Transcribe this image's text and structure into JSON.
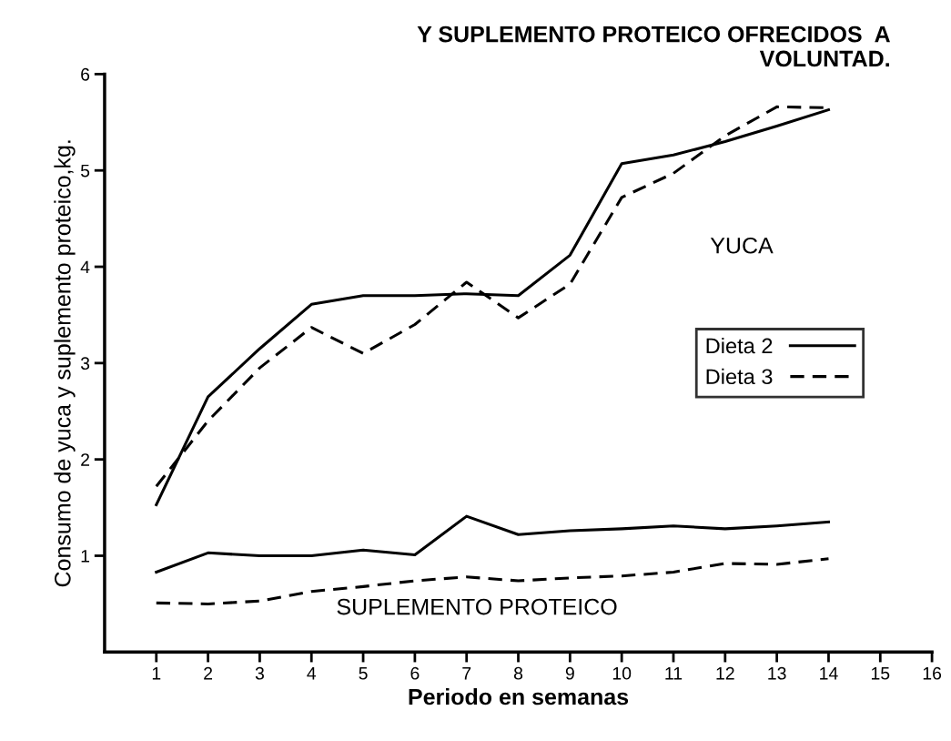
{
  "chart_data": {
    "type": "line",
    "title": "Y SUPLEMENTO PROTEICO OFRECIDOS  A\nVOLUNTAD.",
    "xlabel": "Periodo en semanas",
    "ylabel": "Consumo de yuca y suplemento proteico,kg.",
    "x": [
      1,
      2,
      3,
      4,
      5,
      6,
      7,
      8,
      9,
      10,
      11,
      12,
      13,
      14
    ],
    "series": [
      {
        "name": "Dieta 2",
        "color": "#000000",
        "line_style": "solid",
        "values": [
          1.53,
          2.65,
          3.15,
          3.61,
          3.7,
          3.7,
          3.72,
          3.7,
          4.12,
          5.07,
          5.16,
          5.3,
          5.46,
          5.63
        ]
      },
      {
        "name": "Dieta 3",
        "color": "#000000",
        "line_style": "dashed",
        "values": [
          1.72,
          2.4,
          2.95,
          3.37,
          3.1,
          3.4,
          3.84,
          3.47,
          3.82,
          4.72,
          4.97,
          5.36,
          5.66,
          5.65
        ]
      },
      {
        "color": "#000000",
        "line_style": "solid",
        "values": [
          0.83,
          1.03,
          1.0,
          1.0,
          1.06,
          1.01,
          1.41,
          1.22,
          1.26,
          1.28,
          1.31,
          1.28,
          1.31,
          1.35
        ]
      },
      {
        "color": "#000000",
        "line_style": "dashed",
        "values": [
          0.51,
          0.5,
          0.53,
          0.63,
          0.68,
          0.74,
          0.78,
          0.74,
          0.77,
          0.79,
          0.83,
          0.92,
          0.91,
          0.97
        ]
      }
    ],
    "annotations": [
      "YUCA",
      "SUPLEMENTO PROTEICO"
    ],
    "xlim": [
      0,
      16
    ],
    "xticks": [
      1,
      2,
      3,
      4,
      5,
      6,
      7,
      8,
      9,
      10,
      11,
      12,
      13,
      14,
      15,
      16
    ],
    "ylim": [
      0,
      6
    ],
    "yticks": [
      1,
      2,
      3,
      4,
      5,
      6
    ],
    "grid": false,
    "legend": "center right",
    "marker": "none"
  }
}
